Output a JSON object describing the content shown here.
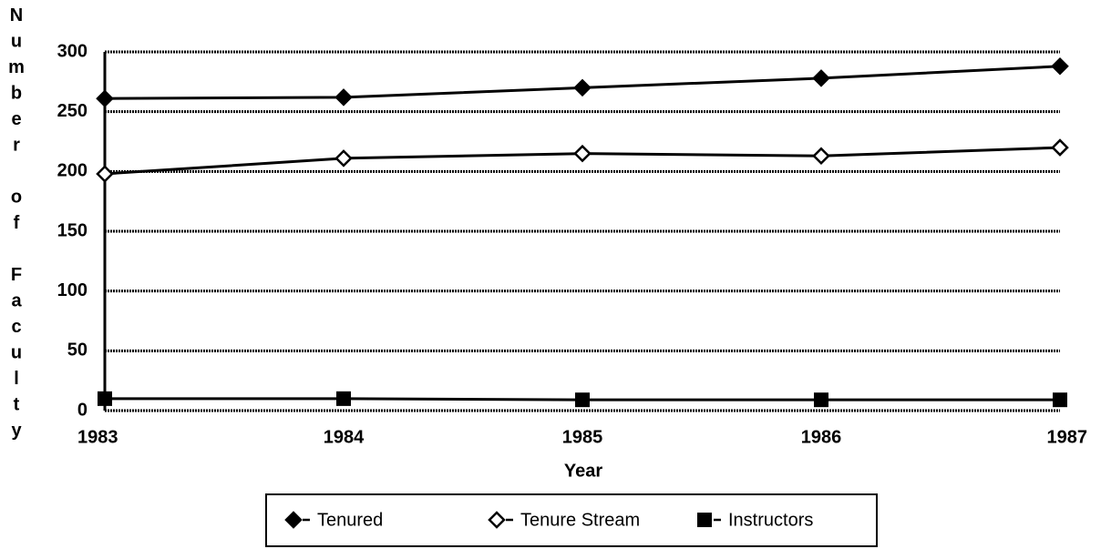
{
  "chart_data": {
    "type": "line",
    "x_label": "Year",
    "y_label": "Number of Faculty",
    "categories": [
      "1983",
      "1984",
      "1985",
      "1986",
      "1987"
    ],
    "series": [
      {
        "name": "Tenured",
        "color": "#000000",
        "marker": "diamond-filled",
        "values": [
          261,
          262,
          270,
          278,
          288
        ]
      },
      {
        "name": "Tenure Stream",
        "color": "#000000",
        "marker": "diamond-open",
        "values": [
          198,
          211,
          215,
          213,
          220
        ]
      },
      {
        "name": "Instructors",
        "color": "#000000",
        "marker": "square-filled",
        "values": [
          10,
          10,
          9,
          9,
          9
        ]
      }
    ],
    "ylim": [
      0,
      300
    ],
    "yticks": [
      0,
      50,
      100,
      150,
      200,
      250,
      300
    ],
    "grid": true,
    "legend": "bottom"
  }
}
